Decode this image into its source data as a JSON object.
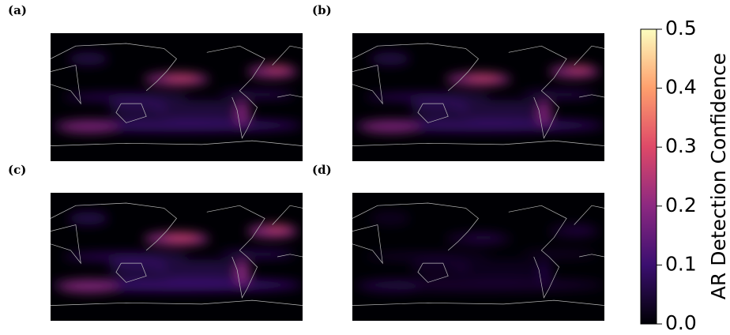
{
  "chart_data": {
    "type": "heatmap",
    "panels": [
      {
        "label": "(a)"
      },
      {
        "label": "(b)"
      },
      {
        "label": "(c)"
      },
      {
        "label": "(d)"
      }
    ],
    "colormap": "magma",
    "colorbar_label": "AR Detection Confidence",
    "clim": [
      0,
      0.5
    ],
    "cticks": [
      {
        "value": 0,
        "label": "0.0"
      },
      0.1,
      0.2,
      0.3,
      0.4,
      0.5
    ]
  }
}
